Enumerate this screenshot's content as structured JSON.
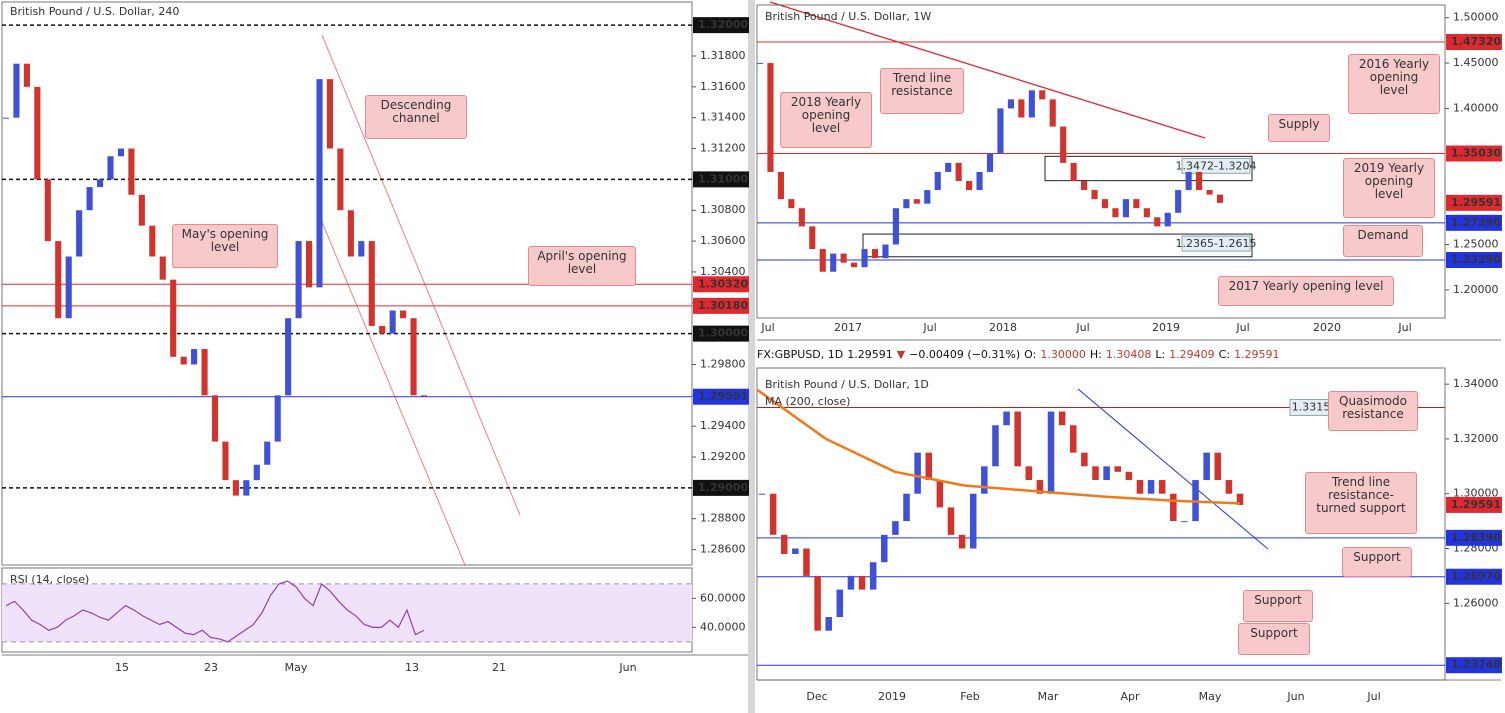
{
  "chart_data": [
    {
      "type": "candlestick",
      "title": "British Pound / U.S. Dollar, 240",
      "up_color": "#3f51d6",
      "down_color": "#d0342c",
      "values": [
        1.314,
        1.3175,
        1.316,
        1.31,
        1.306,
        1.301,
        1.305,
        1.308,
        1.3095,
        1.31,
        1.3115,
        1.312,
        1.309,
        1.307,
        1.305,
        1.3035,
        1.2985,
        1.298,
        1.299,
        1.296,
        1.293,
        1.2905,
        1.2895,
        1.2905,
        1.2915,
        1.293,
        1.296,
        1.301,
        1.306,
        1.303,
        1.3165,
        1.312,
        1.308,
        1.305,
        1.306,
        1.3005,
        1.3,
        1.3015,
        1.301,
        1.296,
        1.2959
      ],
      "ylim": [
        1.285,
        1.3215
      ],
      "yticks": [
        {
          "value": 1.286,
          "label": "1.28600"
        },
        {
          "value": 1.288,
          "label": "1.28800"
        },
        {
          "value": 1.292,
          "label": "1.29200"
        },
        {
          "value": 1.294,
          "label": "1.29400"
        },
        {
          "value": 1.296,
          "label": "1.29600"
        },
        {
          "value": 1.298,
          "label": "1.29800"
        },
        {
          "value": 1.302,
          "label": "1.30200"
        },
        {
          "value": 1.304,
          "label": "1.30400"
        },
        {
          "value": 1.306,
          "label": "1.30600"
        },
        {
          "value": 1.308,
          "label": "1.30800"
        },
        {
          "value": 1.312,
          "label": "1.31200"
        },
        {
          "value": 1.314,
          "label": "1.31400"
        },
        {
          "value": 1.316,
          "label": "1.31600"
        },
        {
          "value": 1.318,
          "label": "1.31800"
        }
      ],
      "levels": [
        {
          "value": 1.32,
          "label": "1.32000",
          "color": "#111111",
          "dashed": true
        },
        {
          "value": 1.31,
          "label": "1.31000",
          "color": "#111111",
          "dashed": true
        },
        {
          "value": 1.3032,
          "label": "1.30320",
          "color": "#e0292f",
          "dashed": false
        },
        {
          "value": 1.3018,
          "label": "1.30180",
          "color": "#e0292f",
          "dashed": false
        },
        {
          "value": 1.3,
          "label": "1.30000",
          "color": "#111111",
          "dashed": true
        },
        {
          "value": 1.29591,
          "label": "1.29591",
          "color": "#2233e0",
          "dashed": false
        },
        {
          "value": 1.29,
          "label": "1.29000",
          "color": "#111111",
          "dashed": true
        }
      ],
      "xticks": [
        "15",
        "23",
        "May",
        "13",
        "21",
        "Jun"
      ],
      "annotations": [
        "Descending channel",
        "May's opening level",
        "April's opening level"
      ]
    },
    {
      "type": "line",
      "title": "RSI (14, close)",
      "color": "#8e44ad",
      "band": [
        30,
        70
      ],
      "band_color": "#f0e2fb",
      "values": [
        55,
        58,
        52,
        45,
        42,
        38,
        40,
        45,
        48,
        52,
        50,
        47,
        45,
        50,
        55,
        52,
        48,
        45,
        42,
        44,
        40,
        36,
        35,
        38,
        33,
        32,
        30,
        34,
        38,
        42,
        50,
        62,
        70,
        72,
        68,
        60,
        55,
        70,
        65,
        58,
        52,
        48,
        42,
        40,
        40,
        45,
        40,
        52,
        35,
        38
      ],
      "ylim": [
        23,
        81
      ],
      "yticks": [
        {
          "value": 40,
          "label": "40.0000"
        },
        {
          "value": 60,
          "label": "60.0000"
        }
      ]
    },
    {
      "type": "candlestick",
      "title": "British Pound / U.S. Dollar, 1W",
      "up_color": "#3f51d6",
      "down_color": "#d0342c",
      "values": [
        1.45,
        1.33,
        1.3,
        1.29,
        1.27,
        1.245,
        1.22,
        1.24,
        1.23,
        1.225,
        1.245,
        1.235,
        1.25,
        1.29,
        1.3,
        1.295,
        1.31,
        1.33,
        1.34,
        1.32,
        1.31,
        1.33,
        1.35,
        1.4,
        1.41,
        1.39,
        1.42,
        1.41,
        1.38,
        1.34,
        1.32,
        1.31,
        1.3,
        1.29,
        1.28,
        1.3,
        1.29,
        1.28,
        1.27,
        1.285,
        1.31,
        1.33,
        1.31,
        1.305,
        1.2959
      ],
      "ylim": [
        1.169,
        1.514
      ],
      "yticks": [
        {
          "value": 1.2,
          "label": "1.20000"
        },
        {
          "value": 1.25,
          "label": "1.25000"
        },
        {
          "value": 1.4,
          "label": "1.40000"
        },
        {
          "value": 1.45,
          "label": "1.45000"
        },
        {
          "value": 1.5,
          "label": "1.50000"
        }
      ],
      "levels": [
        {
          "value": 1.4732,
          "label": "1.47320",
          "color": "#e0292f",
          "dashed": false
        },
        {
          "value": 1.3503,
          "label": "1.35030",
          "color": "#e0292f",
          "dashed": false
        },
        {
          "value": 1.29591,
          "label": "1.29591",
          "color": "#e0292f",
          "dashed": false,
          "hidden_line": true
        },
        {
          "value": 1.2739,
          "label": "1.27390",
          "color": "#2233e0",
          "dashed": false
        },
        {
          "value": 1.2329,
          "label": "1.23290",
          "color": "#2233e0",
          "dashed": false
        }
      ],
      "zones": [
        {
          "from": 1.3204,
          "to": 1.3472,
          "label": "1.3472-1.3204"
        },
        {
          "from": 1.2365,
          "to": 1.2615,
          "label": "1.2365-1.2615"
        }
      ],
      "xticks": [
        "Jul",
        "2017",
        "Jul",
        "2018",
        "Jul",
        "2019",
        "Jul",
        "2020",
        "Jul"
      ],
      "annotations": [
        "Trend line resistance",
        "2018 Yearly opening level",
        "2016 Yearly opening level",
        "Supply",
        "2019 Yearly opening level",
        "Demand",
        "2017 Yearly opening level"
      ]
    },
    {
      "type": "candlestick",
      "title": "British Pound / U.S. Dollar, 1D",
      "up_color": "#3f51d6",
      "down_color": "#d0342c",
      "header": [
        {
          "text": "FX:GBPUSD, 1D",
          "color": "#111"
        },
        {
          "text": "1.29591",
          "color": "#111"
        },
        {
          "text": "▼",
          "color": "#c0392b"
        },
        {
          "text": "−0.00409 (−0.31%)",
          "color": "#111"
        },
        {
          "text": "O:",
          "color": "#111"
        },
        {
          "text": "1.30000",
          "color": "#c0392b"
        },
        {
          "text": "H:",
          "color": "#111"
        },
        {
          "text": "1.30408",
          "color": "#c0392b"
        },
        {
          "text": "L:",
          "color": "#111"
        },
        {
          "text": "1.29409",
          "color": "#c0392b"
        },
        {
          "text": "C:",
          "color": "#111"
        },
        {
          "text": "1.29591",
          "color": "#c0392b"
        }
      ],
      "values": [
        1.3,
        1.285,
        1.278,
        1.28,
        1.27,
        1.25,
        1.255,
        1.265,
        1.27,
        1.265,
        1.275,
        1.285,
        1.29,
        1.3,
        1.315,
        1.305,
        1.295,
        1.285,
        1.28,
        1.3,
        1.31,
        1.325,
        1.33,
        1.31,
        1.305,
        1.3,
        1.33,
        1.325,
        1.315,
        1.31,
        1.305,
        1.31,
        1.308,
        1.305,
        1.3,
        1.305,
        1.3,
        1.29,
        1.29,
        1.305,
        1.315,
        1.305,
        1.3,
        1.2959
      ],
      "series": [
        {
          "name": "MA (200, close)",
          "color": "#f07a1a",
          "values": [
            1.338,
            1.32,
            1.308,
            1.303,
            1.301,
            1.299,
            1.2975,
            1.2965
          ]
        }
      ],
      "ylim": [
        1.232,
        1.3459
      ],
      "yticks": [
        {
          "value": 1.26,
          "label": "1.26000"
        },
        {
          "value": 1.28,
          "label": "1.28000"
        },
        {
          "value": 1.3,
          "label": "1.30000"
        },
        {
          "value": 1.32,
          "label": "1.32000"
        },
        {
          "value": 1.34,
          "label": "1.34000"
        }
      ],
      "levels": [
        {
          "value": 1.3315,
          "label": "1.3315",
          "color": "#b22222",
          "dashed": false,
          "inside": true
        },
        {
          "value": 1.29591,
          "label": "1.29591",
          "color": "#e0292f",
          "dashed": false,
          "hidden_line": true
        },
        {
          "value": 1.2839,
          "label": "1.28390",
          "color": "#2233e0",
          "dashed": false
        },
        {
          "value": 1.2697,
          "label": "1.26970",
          "color": "#2233e0",
          "dashed": false
        },
        {
          "value": 1.2374,
          "label": "1.23740",
          "color": "#2233e0",
          "dashed": false
        }
      ],
      "xticks": [
        "Dec",
        "2019",
        "Feb",
        "Mar",
        "Apr",
        "May",
        "Jun",
        "Jul"
      ],
      "annotations": [
        "Quasimodo resistance",
        "Trend line resistance-turned support",
        "Support",
        "Support",
        "Support"
      ]
    }
  ]
}
